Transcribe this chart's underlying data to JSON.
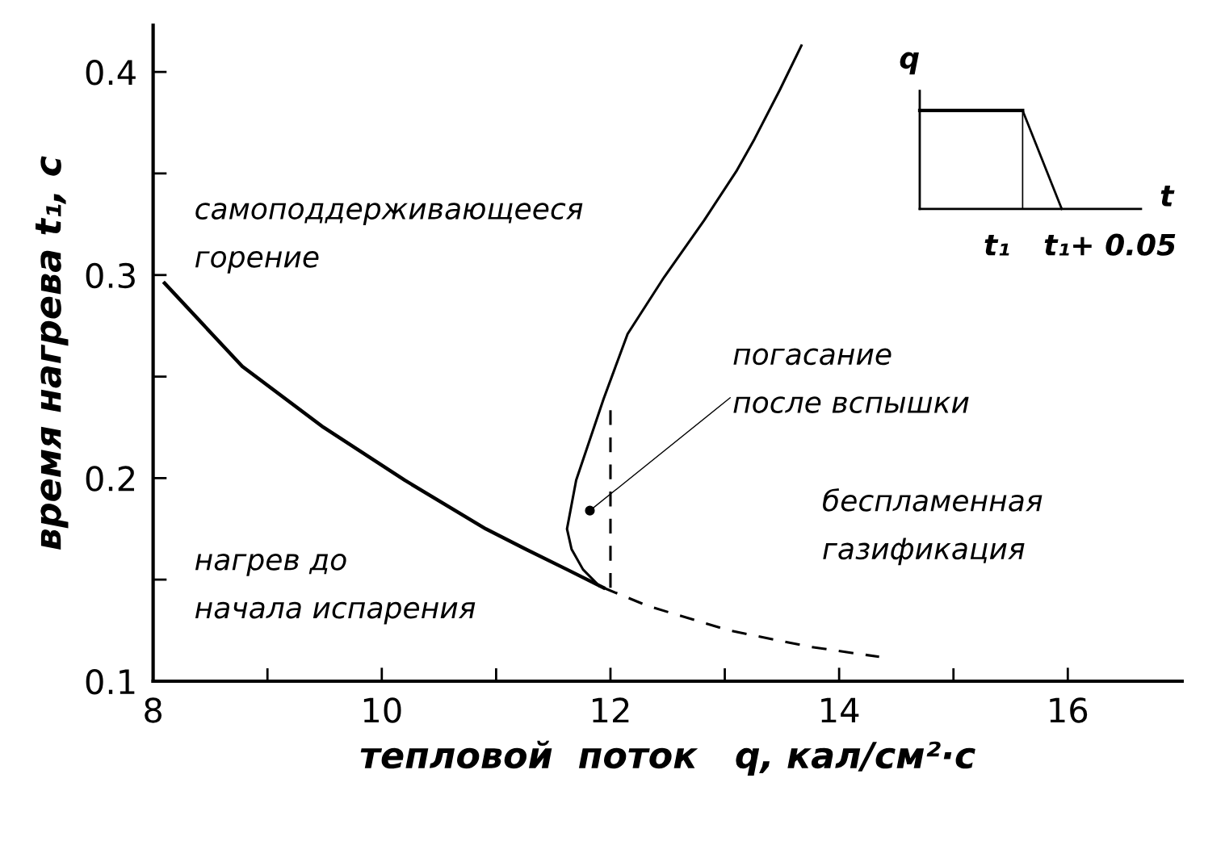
{
  "chart_data": {
    "type": "line",
    "xlabel": "тепловой  поток   q, кал/см²·с",
    "ylabel": "время нагрева t₁, с",
    "xlim": [
      8,
      17
    ],
    "ylim": [
      0.1,
      0.423
    ],
    "xticks": [
      8,
      {
        "value": 9,
        "label": null
      },
      10,
      {
        "value": 11,
        "label": null
      },
      12,
      {
        "value": 13,
        "label": null
      },
      14,
      {
        "value": 15,
        "label": null
      },
      16
    ],
    "yticks": [
      0.1,
      {
        "value": 0.15,
        "label": null
      },
      0.2,
      {
        "value": 0.25,
        "label": null
      },
      0.3,
      {
        "value": 0.35,
        "label": null
      },
      0.4
    ],
    "grid": false,
    "marker": "none",
    "series": [
      {
        "color": "#000000",
        "line_style": "solid",
        "x": [
          8.1,
          8.78,
          9.49,
          10.2,
          10.91,
          11.26,
          11.62,
          11.94
        ],
        "values": [
          0.296,
          0.255,
          0.225,
          0.199,
          0.175,
          0.165,
          0.155,
          0.146
        ]
      },
      {
        "color": "#000000",
        "line_style": "dashed",
        "x": [
          11.94,
          12.33,
          13.04,
          13.74,
          14.35
        ],
        "values": [
          0.146,
          0.137,
          0.125,
          0.117,
          0.112
        ]
      },
      {
        "color": "#000000",
        "line_style": "solid",
        "x": [
          11.9,
          11.76,
          11.66,
          11.62,
          11.7,
          11.94,
          12.15,
          12.47,
          12.82,
          13.1,
          13.26,
          13.48,
          13.67
        ],
        "values": [
          0.147,
          0.155,
          0.165,
          0.175,
          0.199,
          0.239,
          0.271,
          0.299,
          0.327,
          0.351,
          0.367,
          0.391,
          0.413
        ]
      },
      {
        "color": "#000000",
        "line_style": "dashed",
        "x": [
          12,
          12
        ],
        "values": [
          0.146,
          0.235
        ]
      },
      {
        "type": "scatter",
        "color": "#000000",
        "marker": "circle",
        "x": [
          11.82
        ],
        "values": [
          0.184
        ]
      }
    ],
    "annotations": [
      "самоподдерживающееся\nгорение",
      {
        "text": "погасание\nпосле вспышки",
        "x": 11.82,
        "y": 0.184
      },
      "беспламенная\nгазификация",
      "нагрев до\nначала испарения",
      "q",
      "t",
      "t₁",
      "t₁+ 0.05"
    ]
  }
}
